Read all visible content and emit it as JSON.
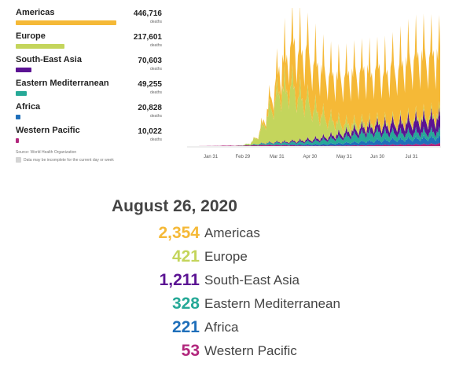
{
  "regions": [
    {
      "name": "Americas",
      "deaths": "446,716",
      "unit": "deaths",
      "color": "#f5b937",
      "bar_fraction": 1.0
    },
    {
      "name": "Europe",
      "deaths": "217,601",
      "unit": "deaths",
      "color": "#c4d55c",
      "bar_fraction": 0.487
    },
    {
      "name": "South-East Asia",
      "deaths": "70,603",
      "unit": "deaths",
      "color": "#5b1393",
      "bar_fraction": 0.158
    },
    {
      "name": "Eastern Mediterranean",
      "deaths": "49,255",
      "unit": "deaths",
      "color": "#26a997",
      "bar_fraction": 0.11
    },
    {
      "name": "Africa",
      "deaths": "20,828",
      "unit": "deaths",
      "color": "#1f6fba",
      "bar_fraction": 0.047
    },
    {
      "name": "Western Pacific",
      "deaths": "10,022",
      "unit": "deaths",
      "color": "#b2277d",
      "bar_fraction": 0.022
    }
  ],
  "source": "Source: World Health Organization",
  "note": "Data may be incomplete for the current day or week",
  "chart_data": {
    "type": "area",
    "stacked": true,
    "grid": false,
    "legend": "none",
    "x_tick_labels": [
      "Jan 31",
      "Feb 29",
      "Mar 31",
      "Apr 30",
      "May 31",
      "Jun 30",
      "Jul 31"
    ],
    "x_range": [
      "2020-01-11",
      "2020-08-26"
    ],
    "y_range": [
      0,
      10000
    ],
    "series": [
      {
        "name": "Western Pacific",
        "color": "#b2277d",
        "weekly_values": [
          1,
          1,
          8,
          15,
          20,
          45,
          25,
          40,
          60,
          70,
          90,
          80,
          70,
          60,
          50,
          40,
          30,
          30,
          30,
          40,
          40,
          50,
          60,
          70,
          80,
          90,
          100,
          110,
          120,
          130,
          140,
          150,
          170,
          190
        ]
      },
      {
        "name": "Africa",
        "color": "#1f6fba",
        "weekly_values": [
          0,
          0,
          0,
          0,
          0,
          0,
          0,
          0,
          0,
          5,
          15,
          30,
          40,
          60,
          80,
          90,
          100,
          110,
          130,
          160,
          180,
          210,
          240,
          280,
          300,
          330,
          350,
          370,
          380,
          400,
          420,
          430,
          440,
          420
        ]
      },
      {
        "name": "Eastern Mediterranean",
        "color": "#26a997",
        "weekly_values": [
          0,
          0,
          0,
          0,
          0,
          0,
          2,
          15,
          40,
          80,
          110,
          130,
          140,
          140,
          150,
          180,
          220,
          280,
          330,
          380,
          420,
          500,
          560,
          600,
          610,
          580,
          530,
          480,
          460,
          460,
          450,
          440,
          430,
          420
        ]
      },
      {
        "name": "South-East Asia",
        "color": "#5b1393",
        "weekly_values": [
          0,
          0,
          0,
          0,
          0,
          0,
          0,
          0,
          2,
          10,
          25,
          40,
          60,
          80,
          100,
          130,
          150,
          180,
          210,
          250,
          300,
          350,
          400,
          450,
          500,
          550,
          600,
          700,
          780,
          860,
          920,
          960,
          990,
          1000
        ]
      },
      {
        "name": "Europe",
        "color": "#c4d55c",
        "weekly_values": [
          0,
          0,
          0,
          0,
          0,
          0,
          0,
          15,
          120,
          600,
          1700,
          2900,
          3800,
          4100,
          3600,
          3000,
          2400,
          1800,
          1300,
          1000,
          700,
          500,
          400,
          300,
          250,
          220,
          200,
          190,
          200,
          210,
          220,
          250,
          280,
          300
        ]
      },
      {
        "name": "Americas",
        "color": "#f5b937",
        "weekly_values": [
          0,
          0,
          0,
          0,
          0,
          0,
          0,
          0,
          5,
          60,
          400,
          1100,
          2000,
          2900,
          3500,
          3700,
          3700,
          3600,
          3500,
          3500,
          3600,
          3800,
          3900,
          3900,
          3900,
          3900,
          4000,
          4200,
          4500,
          4700,
          4700,
          4600,
          4500,
          4400
        ]
      }
    ]
  },
  "summary": {
    "date": "August 26, 2020",
    "items": [
      {
        "value": "2,354",
        "name": "Americas",
        "color": "#f5b937"
      },
      {
        "value": "421",
        "name": "Europe",
        "color": "#c4d55c"
      },
      {
        "value": "1,211",
        "name": "South-East Asia",
        "color": "#5b1393"
      },
      {
        "value": "328",
        "name": "Eastern Mediterranean",
        "color": "#26a997"
      },
      {
        "value": "221",
        "name": "Africa",
        "color": "#1f6fba"
      },
      {
        "value": "53",
        "name": "Western Pacific",
        "color": "#b2277d"
      }
    ]
  }
}
